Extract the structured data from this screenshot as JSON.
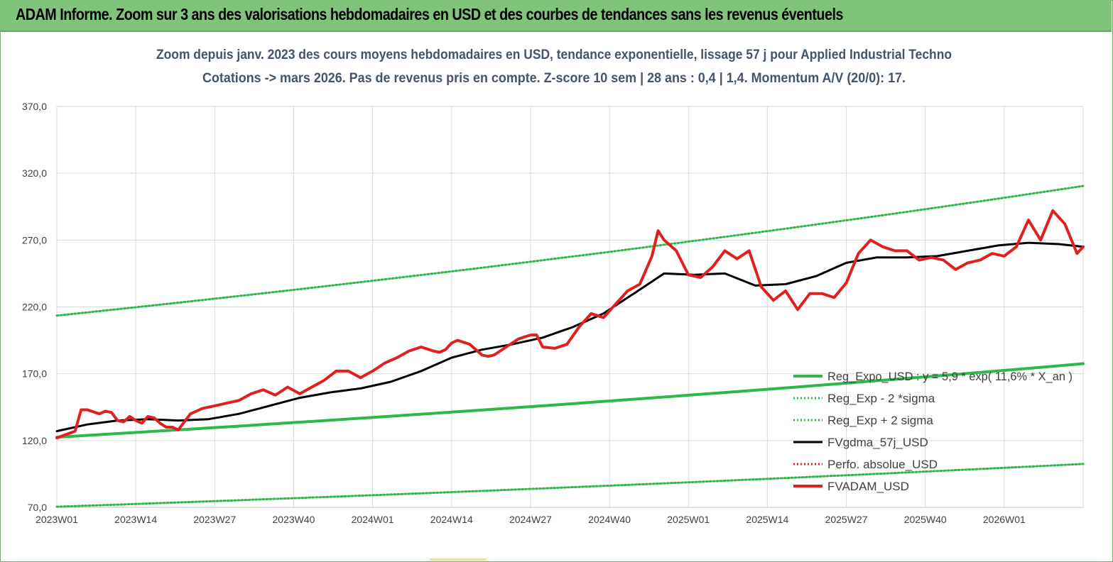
{
  "banner": {
    "title": "ADAM Informe. Zoom sur 3 ans des valorisations hebdomadaires en USD et des courbes de tendances sans les revenus éventuels"
  },
  "chart_data": {
    "type": "line",
    "title": "Zoom depuis janv. 2023 des cours moyens hebdomadaires en USD, tendance exponentielle, lissage 57 j pour Applied Industrial Techno",
    "subtitle": "Cotations -> mars 2026. Pas de revenus pris en compte. Z-score 10 sem | 28 ans : 0,4 | 1,4. Momentum A/V (20/0): 17.",
    "ylim": [
      70,
      370
    ],
    "y_ticks": [
      "70,0",
      "120,0",
      "170,0",
      "220,0",
      "270,0",
      "320,0",
      "370,0"
    ],
    "x_ticks": [
      "2023W01",
      "2023W14",
      "2023W27",
      "2023W40",
      "2024W01",
      "2024W14",
      "2024W27",
      "2024W40",
      "2025W01",
      "2025W14",
      "2025W27",
      "2025W40",
      "2026W01"
    ],
    "grid": true,
    "legend_position": "bottom-right",
    "series": [
      {
        "name": "Reg_Expo_USD : y = 5,9 * exp( 11,6% * X_an )",
        "color": "#2eb84a",
        "style": "solid-thick",
        "x": [
          0,
          169
        ],
        "values": [
          122.5,
          177.5
        ]
      },
      {
        "name": "Reg_Exp - 2 *sigma",
        "color": "#2eb84a",
        "style": "dotted",
        "x": [
          0,
          169
        ],
        "values": [
          70.5,
          102.5
        ]
      },
      {
        "name": "Reg_Exp + 2 sigma",
        "color": "#2eb84a",
        "style": "dotted",
        "x": [
          0,
          169
        ],
        "values": [
          213.5,
          310.5
        ]
      },
      {
        "name": "FVgdma_57j_USD",
        "color": "#000000",
        "style": "solid",
        "x": [
          0,
          5,
          10,
          15,
          20,
          25,
          30,
          35,
          40,
          45,
          50,
          55,
          60,
          65,
          70,
          75,
          80,
          85,
          90,
          95,
          100,
          105,
          110,
          115,
          120,
          125,
          130,
          135,
          140,
          145,
          150,
          155,
          160,
          165,
          169
        ],
        "values": [
          127,
          132,
          135,
          136,
          135,
          136,
          140,
          146,
          152,
          156,
          159,
          164,
          172,
          182,
          188,
          192,
          197,
          205,
          215,
          230,
          245,
          244,
          245,
          236,
          237,
          243,
          253,
          257,
          257,
          258,
          262,
          266,
          268,
          267,
          265
        ]
      },
      {
        "name": "Perfo. absolue_USD",
        "color": "#e0201e",
        "style": "dotted",
        "x": [],
        "values": []
      },
      {
        "name": "FVADAM_USD",
        "color": "#e0201e",
        "style": "solid-thick",
        "x": [
          0,
          3,
          4,
          5,
          7,
          8,
          9,
          10,
          11,
          12,
          13,
          14,
          15,
          16,
          17,
          18,
          19,
          20,
          22,
          24,
          26,
          28,
          30,
          32,
          34,
          36,
          38,
          40,
          42,
          44,
          46,
          48,
          50,
          52,
          53,
          54,
          56,
          58,
          60,
          62,
          63,
          64,
          65,
          66,
          68,
          70,
          71,
          72,
          74,
          76,
          78,
          79,
          80,
          82,
          84,
          86,
          88,
          90,
          92,
          94,
          96,
          98,
          99,
          100,
          102,
          104,
          106,
          108,
          110,
          112,
          114,
          116,
          118,
          120,
          122,
          124,
          126,
          128,
          130,
          132,
          134,
          136,
          138,
          140,
          142,
          144,
          146,
          148,
          150,
          152,
          154,
          156,
          158,
          160,
          162,
          164,
          166,
          168,
          169
        ],
        "values": [
          122,
          127,
          143,
          143,
          140,
          142,
          141,
          135,
          134,
          138,
          135,
          133,
          138,
          137,
          133,
          130,
          130,
          128,
          140,
          144,
          146,
          148,
          150,
          155,
          158,
          154,
          160,
          155,
          160,
          165,
          172,
          172,
          167,
          172,
          175,
          178,
          182,
          187,
          190,
          187,
          186,
          188,
          193,
          195,
          192,
          184,
          183,
          184,
          190,
          196,
          199,
          199,
          190,
          189,
          192,
          205,
          215,
          212,
          222,
          232,
          237,
          258,
          277,
          270,
          262,
          244,
          242,
          250,
          262,
          256,
          262,
          235,
          225,
          232,
          218,
          230,
          230,
          227,
          238,
          260,
          270,
          265,
          262,
          262,
          255,
          257,
          255,
          248,
          253,
          255,
          260,
          258,
          265,
          285,
          270,
          292,
          282,
          260,
          265
        ]
      }
    ]
  }
}
